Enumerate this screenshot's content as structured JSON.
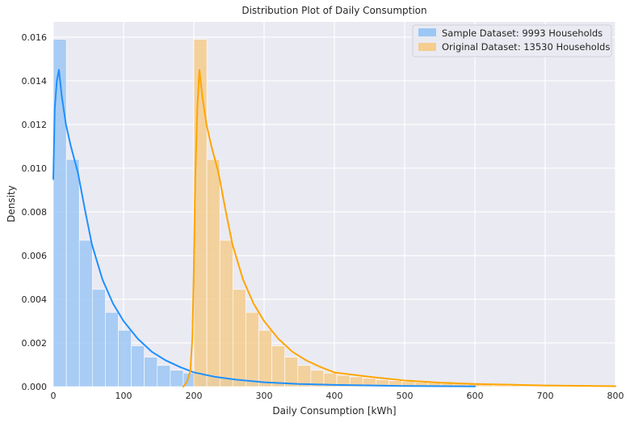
{
  "chart_data": {
    "type": "bar",
    "title": "Distribution Plot of Daily Consumption",
    "xlabel": "Daily Consumption [kWh]",
    "ylabel": "Density",
    "xlim": [
      0,
      800
    ],
    "ylim": [
      0,
      0.0167
    ],
    "x_ticks": [
      0,
      100,
      200,
      300,
      400,
      500,
      600,
      700,
      800
    ],
    "x_tick_labels": [
      "0",
      "100",
      "200",
      "300",
      "400",
      "500",
      "600",
      "700",
      "800"
    ],
    "y_ticks": [
      0,
      0.002,
      0.004,
      0.006,
      0.008,
      0.01,
      0.012,
      0.014,
      0.016
    ],
    "y_tick_labels": [
      "0.000",
      "0.002",
      "0.004",
      "0.006",
      "0.008",
      "0.010",
      "0.012",
      "0.014",
      "0.016"
    ],
    "grid": true,
    "legend_position": "top-right",
    "background_color": "#eaeaf2",
    "series": [
      {
        "name": "Sample Dataset: 9993 Households",
        "color": "#1e90ff",
        "hist_color": "#9cc7f5",
        "bin_width": 18.5,
        "bin_start": 0,
        "hist": [
          0.0159,
          0.0104,
          0.0067,
          0.00445,
          0.0034,
          0.00258,
          0.00187,
          0.00135,
          0.00097,
          0.00075,
          0.00062,
          0.00052,
          0.00045,
          0.00038,
          0.00032,
          0.00027,
          0.00023,
          0.0002,
          0.00017,
          0.00014,
          0.00012,
          0.0001,
          8e-05,
          6e-05,
          5e-05,
          4e-05,
          3e-05,
          2e-05
        ],
        "kde_x": [
          0,
          2,
          5,
          8,
          12,
          18,
          25,
          35,
          45,
          55,
          70,
          85,
          100,
          120,
          140,
          160,
          180,
          200,
          230,
          260,
          300,
          350,
          400,
          500,
          600
        ],
        "kde_y": [
          0.0095,
          0.0127,
          0.014,
          0.0145,
          0.0133,
          0.012,
          0.011,
          0.0098,
          0.0081,
          0.0065,
          0.0049,
          0.0038,
          0.003,
          0.0022,
          0.0016,
          0.0012,
          0.0009,
          0.00065,
          0.00045,
          0.00032,
          0.0002,
          0.00012,
          8e-05,
          3e-05,
          1e-05
        ]
      },
      {
        "name": "Original Dataset: 13530 Households",
        "color": "#ffa500",
        "hist_color": "#f5cd8e",
        "bin_width": 18.5,
        "bin_start": 200,
        "hist": [
          0.0159,
          0.0104,
          0.0067,
          0.00445,
          0.0034,
          0.00258,
          0.00187,
          0.00135,
          0.00097,
          0.00075,
          0.00062,
          0.00052,
          0.00045,
          0.00038,
          0.00032,
          0.00027,
          0.00023,
          0.0002,
          0.00017,
          0.00014,
          0.00012,
          0.0001,
          8e-05,
          6e-05,
          5e-05,
          4e-05,
          3e-05,
          2e-05,
          2e-05,
          2e-05,
          1e-05,
          1e-05
        ],
        "kde_x": [
          185,
          190,
          195,
          198,
          200,
          202,
          205,
          208,
          212,
          218,
          225,
          235,
          245,
          255,
          270,
          285,
          300,
          320,
          340,
          360,
          380,
          400,
          450,
          500,
          550,
          600,
          700,
          800
        ],
        "kde_y": [
          0,
          0.0002,
          0.0007,
          0.0023,
          0.0054,
          0.0095,
          0.0128,
          0.0145,
          0.0133,
          0.012,
          0.011,
          0.0098,
          0.0081,
          0.0065,
          0.0049,
          0.0038,
          0.003,
          0.0022,
          0.0016,
          0.0012,
          0.0009,
          0.00065,
          0.00045,
          0.00028,
          0.00018,
          0.00012,
          5e-05,
          2e-05
        ]
      }
    ]
  }
}
